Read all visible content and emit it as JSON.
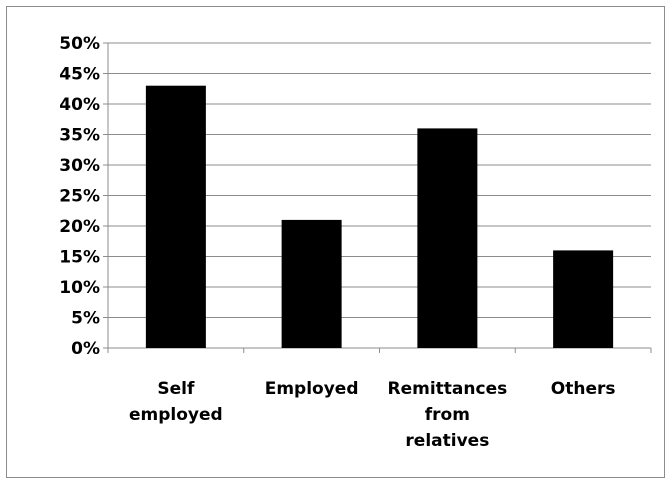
{
  "chart_data": {
    "type": "bar",
    "categories": [
      [
        "Self",
        "employed"
      ],
      [
        "Employed"
      ],
      [
        "Remittances",
        "from",
        "relatives"
      ],
      [
        "Others"
      ]
    ],
    "values": [
      43,
      21,
      36,
      16
    ],
    "ylim": [
      0,
      50
    ],
    "yticks": [
      "0%",
      "5%",
      "10%",
      "15%",
      "20%",
      "25%",
      "30%",
      "35%",
      "40%",
      "45%",
      "50%"
    ],
    "grid": true,
    "bar_color": "#000000",
    "grid_color": "#8c8c8c"
  }
}
